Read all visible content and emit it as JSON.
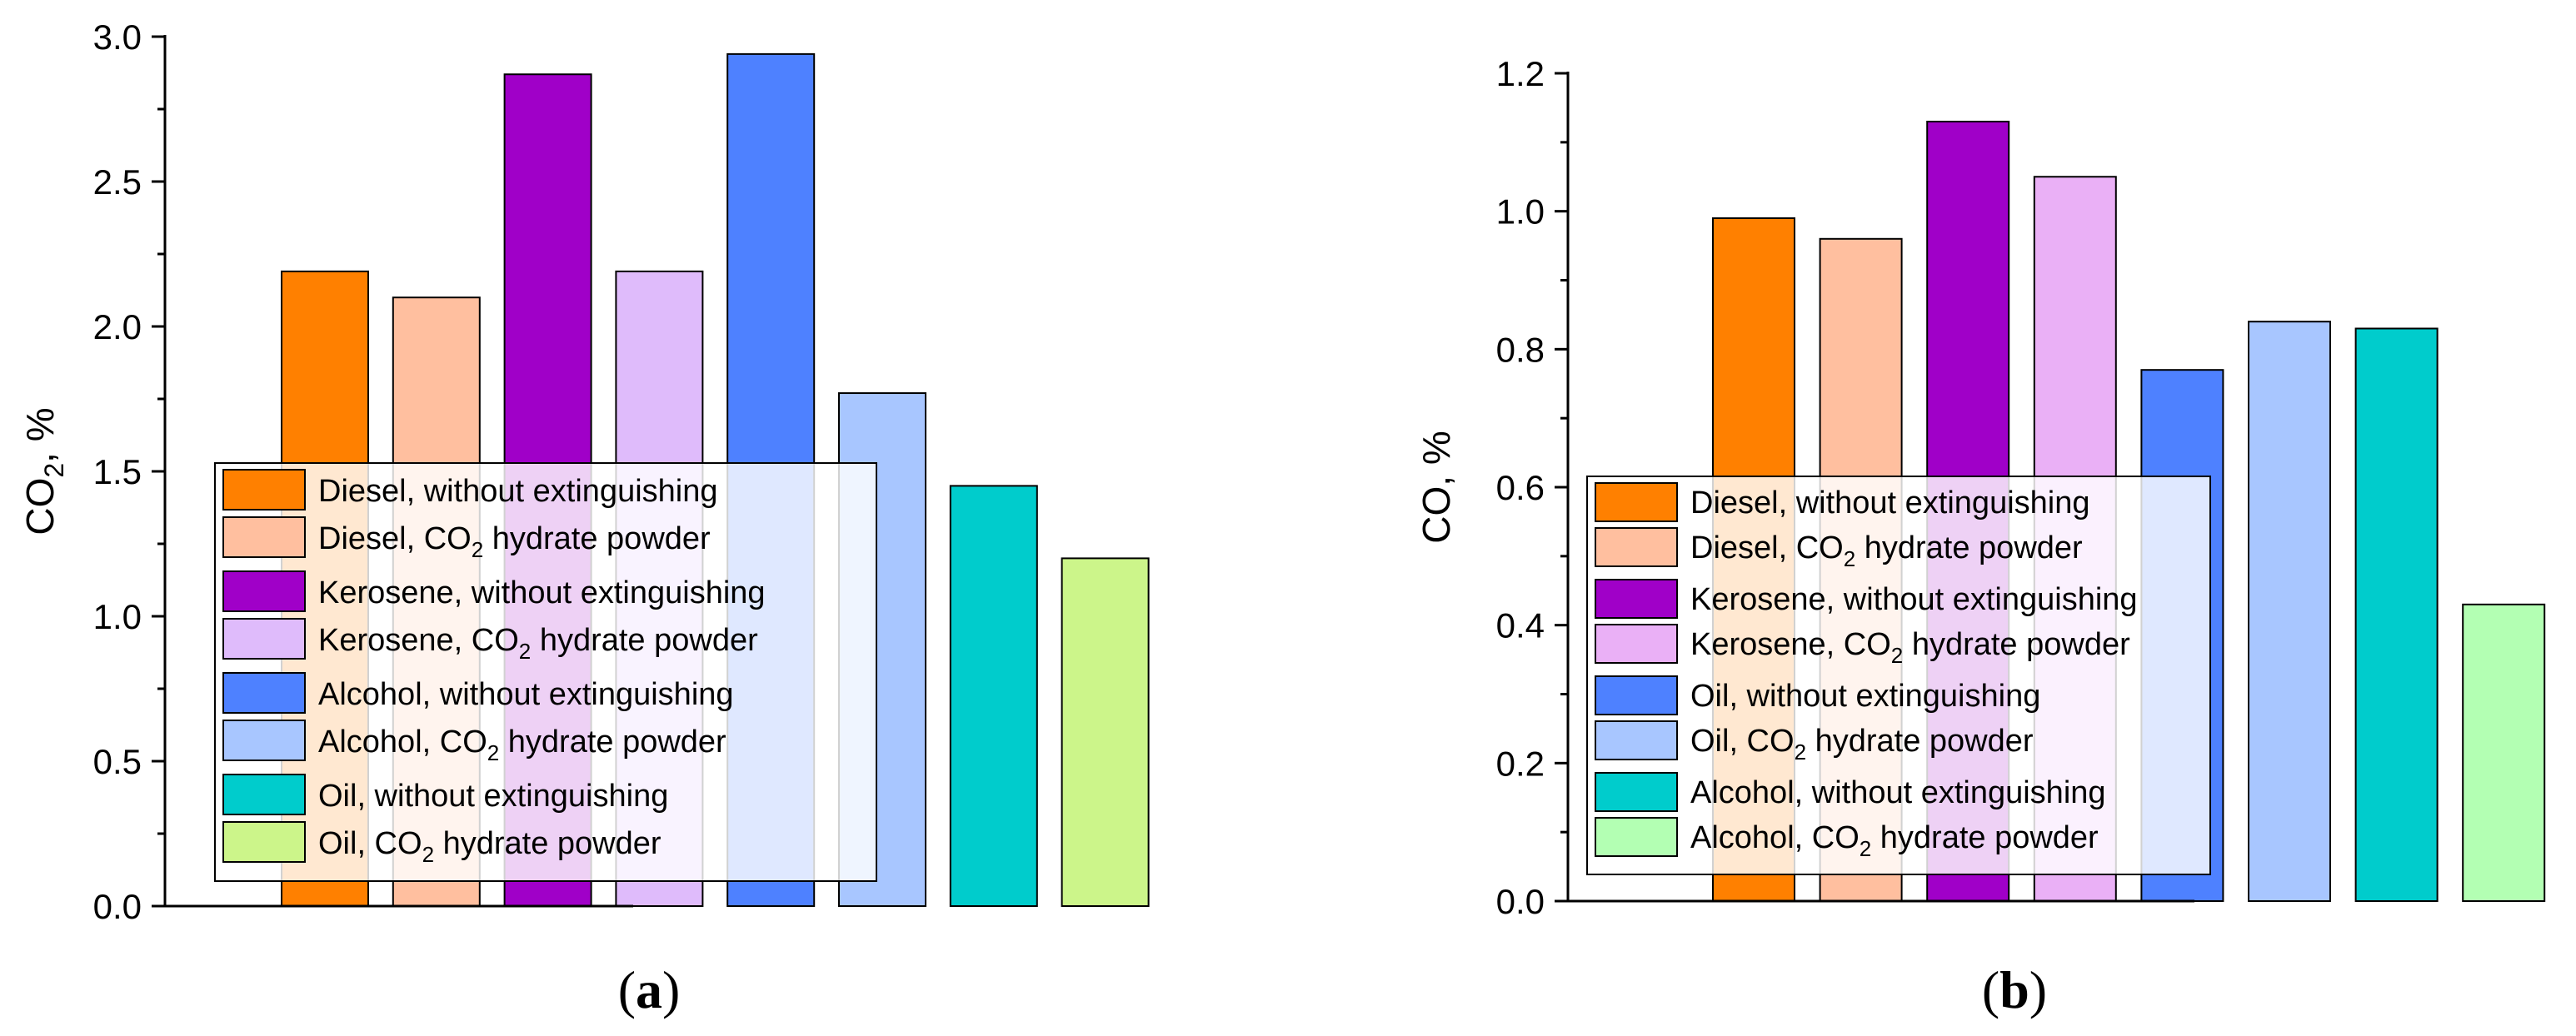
{
  "chart_data": [
    {
      "type": "bar",
      "panel_label": "a",
      "ylabel": {
        "main": "CO",
        "sub": "2",
        "suffix": ", %"
      },
      "ylim": [
        0,
        3.0
      ],
      "yticks": [
        0.0,
        0.5,
        1.0,
        1.5,
        2.0,
        2.5,
        3.0
      ],
      "ytick_labels": [
        "0.0",
        "0.5",
        "1.0",
        "1.5",
        "2.0",
        "2.5",
        "3.0"
      ],
      "xlabel": "",
      "legend_position": "bottom-left",
      "series": [
        {
          "name": "Diesel, without extinguishing",
          "label_parts": [
            "Diesel, without extinguishing"
          ],
          "value": 2.19,
          "color": "#FF8000"
        },
        {
          "name": "Diesel, CO2 hydrate powder",
          "label_parts": [
            "Diesel, CO",
            "2",
            " hydrate powder"
          ],
          "value": 2.1,
          "color": "#FFBF9F"
        },
        {
          "name": "Kerosene, without extinguishing",
          "label_parts": [
            "Kerosene, without extinguishing"
          ],
          "value": 2.87,
          "color": "#A000C8"
        },
        {
          "name": "Kerosene, CO2 hydrate powder",
          "label_parts": [
            "Kerosene, CO",
            "2",
            " hydrate powder"
          ],
          "value": 2.19,
          "color": "#DFBBFB"
        },
        {
          "name": "Alcohol, without extinguishing",
          "label_parts": [
            "Alcohol, without extinguishing"
          ],
          "value": 2.94,
          "color": "#4E81FF"
        },
        {
          "name": "Alcohol, CO2 hydrate powder",
          "label_parts": [
            "Alcohol, CO",
            "2",
            " hydrate powder"
          ],
          "value": 1.77,
          "color": "#A8C6FF"
        },
        {
          "name": "Oil, without extinguishing",
          "label_parts": [
            "Oil, without extinguishing"
          ],
          "value": 1.45,
          "color": "#00CCCC"
        },
        {
          "name": "Oil, CO2 hydrate powder",
          "label_parts": [
            "Oil, CO",
            "2",
            " hydrate powder"
          ],
          "value": 1.2,
          "color": "#CCF58A"
        }
      ]
    },
    {
      "type": "bar",
      "panel_label": "b",
      "ylabel": {
        "main": "CO",
        "sub": "",
        "suffix": ", %"
      },
      "ylim": [
        0,
        1.2
      ],
      "yticks": [
        0.0,
        0.2,
        0.4,
        0.6,
        0.8,
        1.0,
        1.2
      ],
      "ytick_labels": [
        "0.0",
        "0.2",
        "0.4",
        "0.6",
        "0.8",
        "1.0",
        "1.2"
      ],
      "xlabel": "",
      "legend_position": "bottom-left",
      "series": [
        {
          "name": "Diesel, without extinguishing",
          "label_parts": [
            "Diesel, without extinguishing"
          ],
          "value": 0.99,
          "color": "#FF8000"
        },
        {
          "name": "Diesel, CO2 hydrate powder",
          "label_parts": [
            "Diesel, CO",
            "2",
            " hydrate powder"
          ],
          "value": 0.96,
          "color": "#FFBF9F"
        },
        {
          "name": "Kerosene, without extinguishing",
          "label_parts": [
            "Kerosene, without extinguishing"
          ],
          "value": 1.13,
          "color": "#A000C8"
        },
        {
          "name": "Kerosene, CO2 hydrate powder",
          "label_parts": [
            "Kerosene, CO",
            "2",
            " hydrate powder"
          ],
          "value": 1.05,
          "color": "#EAB0F6"
        },
        {
          "name": "Oil, without extinguishing",
          "label_parts": [
            "Oil, without extinguishing"
          ],
          "value": 0.77,
          "color": "#4E81FF"
        },
        {
          "name": "Oil, CO2 hydrate powder",
          "label_parts": [
            "Oil, CO",
            "2",
            " hydrate powder"
          ],
          "value": 0.84,
          "color": "#A8C6FF"
        },
        {
          "name": "Alcohol, without extinguishing",
          "label_parts": [
            "Alcohol, without extinguishing"
          ],
          "value": 0.83,
          "color": "#00CCCC"
        },
        {
          "name": "Alcohol, CO2 hydrate powder",
          "label_parts": [
            "Alcohol, CO",
            "2",
            " hydrate powder"
          ],
          "value": 0.43,
          "color": "#B3FFB3"
        }
      ]
    }
  ]
}
